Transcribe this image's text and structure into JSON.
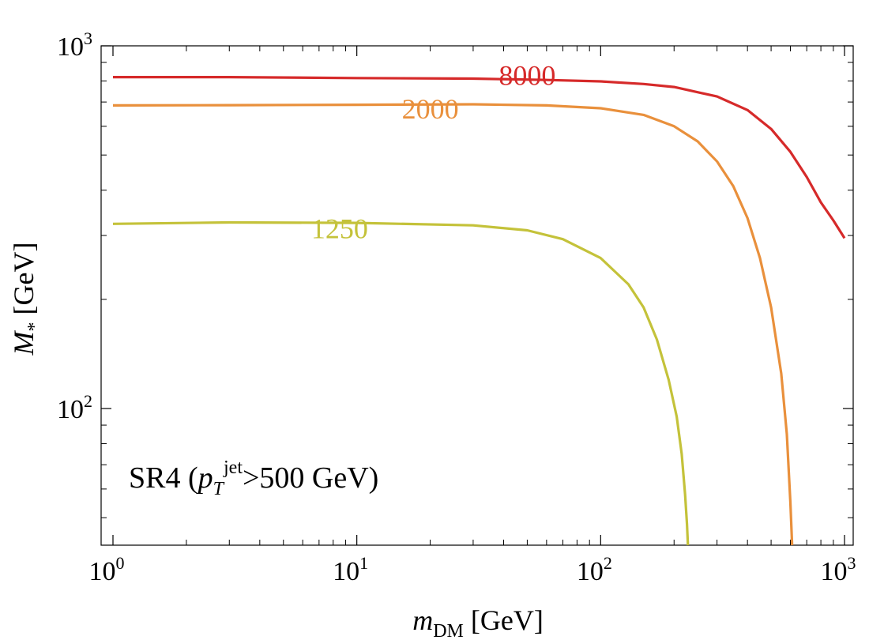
{
  "chart_data": {
    "type": "line",
    "title": "",
    "xscale": "log",
    "yscale": "log",
    "xlim": [
      1,
      1000
    ],
    "ylim": [
      42,
      1000
    ],
    "xlabel": {
      "main": "m",
      "sub": "DM",
      "unit": " [GeV]"
    },
    "ylabel": {
      "main": "M",
      "sub": "*",
      "unit": " [GeV]"
    },
    "xticks": [
      {
        "value": 1,
        "base": "10",
        "exp": "0"
      },
      {
        "value": 10,
        "base": "10",
        "exp": "1"
      },
      {
        "value": 100,
        "base": "10",
        "exp": "2"
      },
      {
        "value": 1000,
        "base": "10",
        "exp": "3"
      }
    ],
    "yticks": [
      {
        "value": 100,
        "base": "10",
        "exp": "2"
      },
      {
        "value": 1000,
        "base": "10",
        "exp": "3"
      }
    ],
    "annotation": {
      "prefix": "SR4 (",
      "p": "p",
      "sub": "T",
      "sup": "jet",
      "suffix": ">500 GeV)"
    },
    "series": [
      {
        "name": "8000",
        "label": "8000",
        "color": "#d62a2a",
        "label_at": {
          "x": 50,
          "y": 780
        },
        "x": [
          1,
          3,
          10,
          30,
          60,
          100,
          150,
          200,
          300,
          400,
          500,
          600,
          700,
          800,
          900,
          1000
        ],
        "y": [
          820,
          820,
          815,
          812,
          805,
          798,
          785,
          770,
          725,
          665,
          590,
          510,
          435,
          370,
          330,
          295
        ]
      },
      {
        "name": "2000",
        "label": "2000",
        "color": "#e9903c",
        "label_at": {
          "x": 20,
          "y": 630
        },
        "x": [
          1,
          3,
          10,
          30,
          60,
          100,
          150,
          200,
          250,
          300,
          350,
          400,
          450,
          500,
          550,
          580,
          600,
          610
        ],
        "y": [
          685,
          686,
          688,
          690,
          685,
          673,
          645,
          600,
          545,
          480,
          410,
          335,
          260,
          190,
          125,
          85,
          55,
          42
        ]
      },
      {
        "name": "1250",
        "label": "1250",
        "color": "#c4c23a",
        "label_at": {
          "x": 8.5,
          "y": 295
        },
        "x": [
          1,
          3,
          10,
          30,
          50,
          70,
          100,
          130,
          150,
          170,
          190,
          205,
          215,
          222,
          226,
          228
        ],
        "y": [
          323,
          326,
          325,
          320,
          310,
          293,
          260,
          220,
          190,
          155,
          120,
          95,
          75,
          58,
          48,
          42
        ]
      }
    ]
  }
}
